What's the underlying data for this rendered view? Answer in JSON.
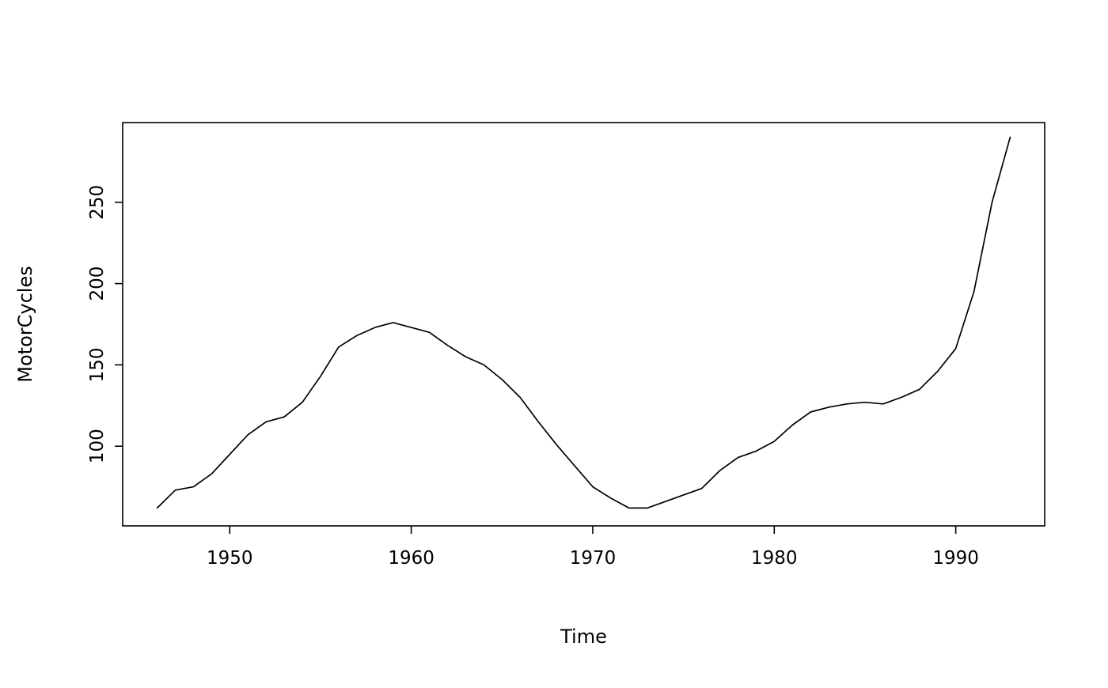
{
  "chart_data": {
    "type": "line",
    "title": "",
    "xlabel": "Time",
    "ylabel": "MotorCycles",
    "x": [
      1946,
      1947,
      1948,
      1949,
      1950,
      1951,
      1952,
      1953,
      1954,
      1955,
      1956,
      1957,
      1958,
      1959,
      1960,
      1961,
      1962,
      1963,
      1964,
      1965,
      1966,
      1967,
      1968,
      1969,
      1970,
      1971,
      1972,
      1973,
      1974,
      1975,
      1976,
      1977,
      1978,
      1979,
      1980,
      1981,
      1982,
      1983,
      1984,
      1985,
      1986,
      1987,
      1988,
      1989,
      1990,
      1991,
      1992,
      1993
    ],
    "values": [
      62,
      73,
      75,
      83,
      95,
      107,
      115,
      118,
      127,
      143,
      161,
      168,
      173,
      176,
      173,
      170,
      162,
      155,
      150,
      141,
      130,
      115,
      101,
      88,
      75,
      68,
      62,
      62,
      66,
      70,
      74,
      85,
      93,
      97,
      103,
      113,
      121,
      124,
      126,
      127,
      126,
      130,
      135,
      146,
      160,
      195,
      250,
      290
    ],
    "xlim": [
      1944.1,
      1994.9
    ],
    "ylim": [
      51,
      299
    ],
    "xticks": [
      1950,
      1960,
      1970,
      1980,
      1990
    ],
    "yticks": [
      100,
      150,
      200,
      250
    ],
    "line_color": "#000000",
    "axis_color": "#000000",
    "background": "#ffffff",
    "grid": false,
    "legend": "none"
  }
}
